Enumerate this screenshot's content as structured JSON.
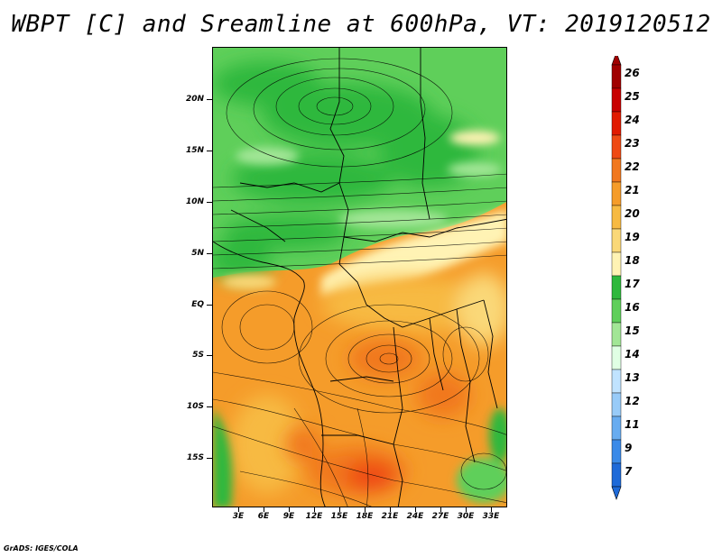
{
  "title": "WBPT [C] and Sreamline at 600hPa, VT: 2019120512",
  "credit": "GrADS: IGES/COLA",
  "map": {
    "lat_labels": [
      "20N",
      "15N",
      "10N",
      "5N",
      "EQ",
      "5S",
      "10S",
      "15S"
    ],
    "lon_labels": [
      "3E",
      "6E",
      "9E",
      "12E",
      "15E",
      "18E",
      "21E",
      "24E",
      "27E",
      "30E",
      "33E"
    ],
    "lat_values": [
      20,
      15,
      10,
      5,
      0,
      -5,
      -10,
      -15
    ],
    "lon_values": [
      3,
      6,
      9,
      12,
      15,
      18,
      21,
      24,
      27,
      30,
      33
    ],
    "lon_range": [
      0,
      35
    ],
    "lat_range": [
      -20,
      25
    ]
  },
  "colorbar": {
    "labels": [
      "26",
      "25",
      "24",
      "23",
      "22",
      "21",
      "20",
      "19",
      "18",
      "17",
      "16",
      "15",
      "14",
      "13",
      "12",
      "11",
      "9",
      "7"
    ],
    "colors": [
      "#a00000",
      "#c80000",
      "#e11a00",
      "#ef4a14",
      "#f1781e",
      "#f59c2a",
      "#f7ba42",
      "#fad878",
      "#fff3b4",
      "#2eb83c",
      "#5fcf5a",
      "#a2e696",
      "#e0ffe4",
      "#c0e3ff",
      "#98cbf8",
      "#68acf0",
      "#3a8ae8",
      "#1e6ad8"
    ]
  },
  "colors": {
    "field_green_dark": "#2eb83c",
    "field_green": "#5fcf5a",
    "field_green_light": "#a2e696",
    "field_yellow": "#fff3b4",
    "field_orange": "#f59c2a",
    "field_orange_deep": "#ef4a14"
  }
}
